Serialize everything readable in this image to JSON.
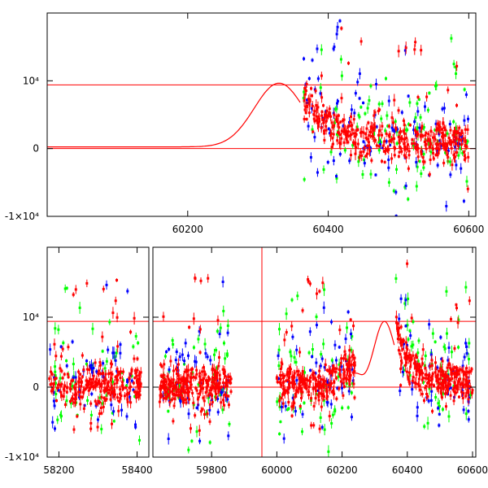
{
  "chart_data": [
    {
      "type": "scatter",
      "panel": "top",
      "title": "",
      "xlabel": "",
      "ylabel": "",
      "xlim": [
        60000,
        60610
      ],
      "ylim": [
        -10000,
        20000
      ],
      "xticks": [
        {
          "value": 60200,
          "label": "60200"
        },
        {
          "value": 60400,
          "label": "60400"
        },
        {
          "value": 60600,
          "label": "60600"
        }
      ],
      "yticks": [
        {
          "value": -10000,
          "label": "-1×10⁴"
        },
        {
          "value": 0,
          "label": "0"
        },
        {
          "value": 10000,
          "label": "10⁴"
        }
      ],
      "hlines": [
        0,
        9400
      ],
      "model_curve": {
        "color": "#ff0000",
        "peak_x": 60330,
        "peak_y": 9400,
        "width": 50,
        "decay_start": 60360,
        "decay_end": 60600
      },
      "scatter_series": [
        {
          "color": "#0000ff",
          "range": [
            60365,
            60600
          ]
        },
        {
          "color": "#00ff00",
          "range": [
            60365,
            60600
          ]
        },
        {
          "color": "#ff0000",
          "range": [
            60365,
            60600
          ]
        }
      ]
    },
    {
      "type": "scatter",
      "panel": "bottom",
      "title": "",
      "xlabel": "",
      "ylabel": "",
      "ylim": [
        -10000,
        20000
      ],
      "segments": [
        {
          "xlim": [
            58170,
            58430
          ],
          "xticks": [
            {
              "value": 58200,
              "label": "58200"
            },
            {
              "value": 58400,
              "label": "58400"
            }
          ]
        },
        {
          "xlim": [
            59620,
            60610
          ],
          "xticks": [
            {
              "value": 59800,
              "label": "59800"
            },
            {
              "value": 60000,
              "label": "60000"
            },
            {
              "value": 60200,
              "label": "60200"
            },
            {
              "value": 60400,
              "label": "60400"
            },
            {
              "value": 60600,
              "label": "60600"
            }
          ]
        }
      ],
      "yticks": [
        {
          "value": -10000,
          "label": "-1×10⁴"
        },
        {
          "value": 0,
          "label": "0"
        },
        {
          "value": 10000,
          "label": "10⁴"
        }
      ],
      "hlines": [
        0,
        9400
      ],
      "vline_x": 59960,
      "data_ranges": [
        [
          58175,
          58410
        ],
        [
          59640,
          59860
        ],
        [
          60000,
          60240
        ],
        [
          60365,
          60600
        ]
      ],
      "model_curve": {
        "color": "#ff0000",
        "peak_x": 60330,
        "peak_y": 9400,
        "rise_start": 60240,
        "decay_start": 60360
      },
      "scatter_series": [
        {
          "color": "#0000ff"
        },
        {
          "color": "#00ff00"
        },
        {
          "color": "#ff0000"
        }
      ]
    }
  ]
}
